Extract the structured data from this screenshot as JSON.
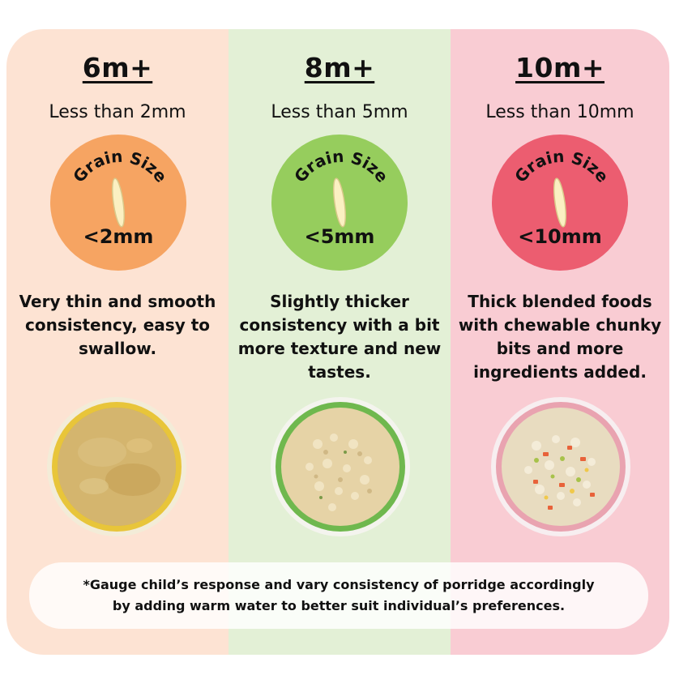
{
  "columns": [
    {
      "age": "6m+",
      "size_text": "Less than 2mm",
      "badge_label": "Grain Size",
      "badge_value": "<2mm",
      "badge_color": "#f6a462",
      "background": "#fde3d3",
      "description": "Very thin and smooth consistency, easy to swallow.",
      "bowl": "smooth-puree-bowl"
    },
    {
      "age": "8m+",
      "size_text": "Less than 5mm",
      "badge_label": "Grain Size",
      "badge_value": "<5mm",
      "badge_color": "#96cd5d",
      "background": "#e3f0d6",
      "description": "Slightly thicker consistency with a bit more texture and new tastes.",
      "bowl": "textured-porridge-bowl"
    },
    {
      "age": "10m+",
      "size_text": "Less than 10mm",
      "badge_label": "Grain Size",
      "badge_value": "<10mm",
      "badge_color": "#ec5d70",
      "background": "#f9ccd3",
      "description": "Thick blended foods with chewable chunky bits and more ingredients added.",
      "bowl": "chunky-porridge-bowl"
    }
  ],
  "footer_note": {
    "line1": "*Gauge child’s response and vary consistency of porridge accordingly",
    "line2": "by adding warm water to better suit individual’s preferences."
  }
}
